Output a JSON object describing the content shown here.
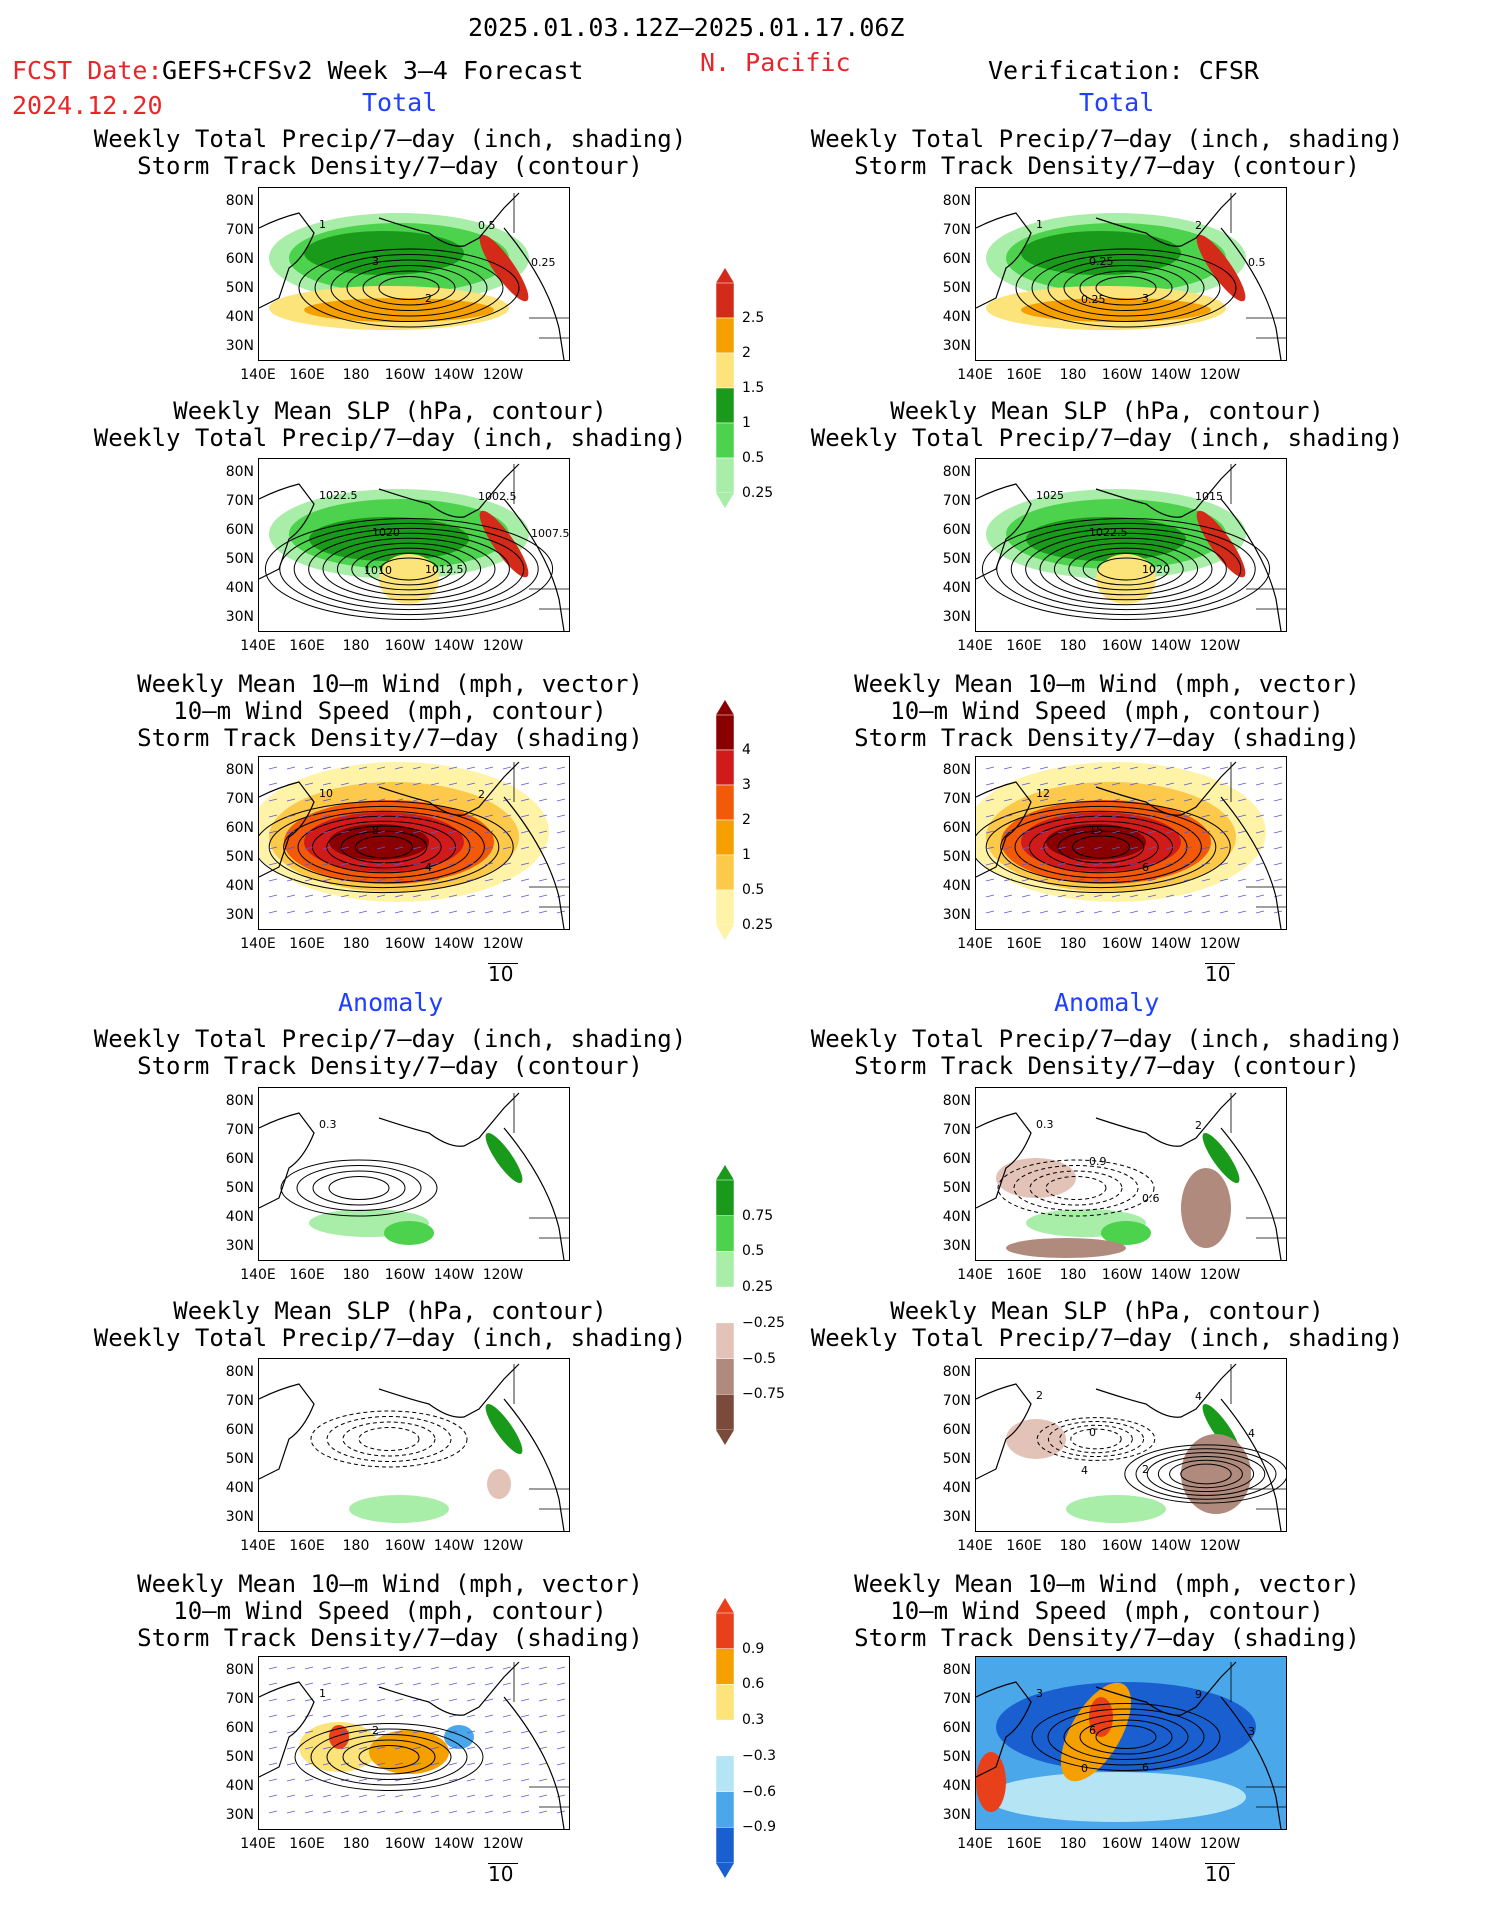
{
  "header": {
    "period": "2025.01.03.12Z–2025.01.17.06Z",
    "fcst_label": "FCST Date:",
    "fcst_model": "GEFS+CFSv2 Week 3–4 Forecast",
    "fcst_date": "2024.12.20",
    "region": "N. Pacific",
    "verification": "Verification: CFSR",
    "total_left": "Total",
    "total_right": "Total",
    "anomaly_left": "Anomaly",
    "anomaly_right": "Anomaly"
  },
  "titles": {
    "precip_storm": [
      "Weekly Total Precip/7–day (inch, shading)",
      "Storm Track Density/7–day (contour)"
    ],
    "slp_precip": [
      "Weekly Mean SLP (hPa, contour)",
      "Weekly Total Precip/7–day (inch, shading)"
    ],
    "wind_storm": [
      "Weekly Mean 10–m Wind (mph, vector)",
      "10–m Wind Speed (mph, contour)",
      "Storm Track Density/7–day (shading)"
    ]
  },
  "axes": {
    "lat_labels": [
      "80N",
      "70N",
      "60N",
      "50N",
      "40N",
      "30N"
    ],
    "lon_labels": [
      "140E",
      "160E",
      "180",
      "160W",
      "140W",
      "120W"
    ]
  },
  "vector_ref": "10",
  "colorbars": {
    "precip_total": {
      "labels": [
        "2.5",
        "2",
        "1.5",
        "1",
        "0.5",
        "0.25"
      ],
      "colors": [
        "#d42a1a",
        "#f5a000",
        "#fce37a",
        "#1a9a1a",
        "#4cd24c",
        "#a8eda8"
      ]
    },
    "storm_total": {
      "labels": [
        "4",
        "3",
        "2",
        "1",
        "0.5",
        "0.25"
      ],
      "colors": [
        "#8a0000",
        "#d11b1b",
        "#f25a0a",
        "#f5a000",
        "#fcc94a",
        "#fff3a8"
      ]
    },
    "precip_anom": {
      "labels": [
        "0.75",
        "0.5",
        "0.25",
        "−0.25",
        "−0.5",
        "−0.75"
      ],
      "colors": [
        "#1a9a1a",
        "#4cd24c",
        "#a8eda8",
        "#ffffff",
        "#e3c2b8",
        "#b08a7c",
        "#7a4a3a"
      ]
    },
    "storm_anom": {
      "labels": [
        "0.9",
        "0.6",
        "0.3",
        "−0.3",
        "−0.6",
        "−0.9"
      ],
      "colors": [
        "#e8401a",
        "#f5a000",
        "#fce37a",
        "#ffffff",
        "#b5e4f5",
        "#4aa7ea",
        "#1a5fd0"
      ]
    }
  },
  "panel_labels": {
    "p1": [
      "1",
      "3",
      "2",
      "0.5",
      "0.25"
    ],
    "p2": [
      "1",
      "0.25",
      "3",
      "2",
      "0.5",
      "0.25"
    ],
    "p3": [
      "1022.5",
      "1020",
      "1012.5",
      "1002.5",
      "1007.5",
      "1010"
    ],
    "p4": [
      "1025",
      "1022.5",
      "1020",
      "1015"
    ],
    "p5": [
      "10",
      "8",
      "4",
      "2"
    ],
    "p6": [
      "12",
      "15",
      "6"
    ],
    "p7": [
      "0.3"
    ],
    "p8": [
      "0.3",
      "0.9",
      "0.6",
      "2"
    ],
    "p9": [],
    "p10": [
      "2",
      "0",
      "2",
      "4",
      "4",
      "4"
    ],
    "p11": [
      "1",
      "2"
    ],
    "p12": [
      "3",
      "6",
      "6",
      "9",
      "3",
      "0"
    ]
  },
  "chart_data": [
    {
      "type": "heatmap",
      "panel": "Total / GEFS+CFSv2",
      "title": [
        "Weekly Total Precip/7–day (inch, shading)",
        "Storm Track Density/7–day (contour)"
      ],
      "lat_range": [
        25,
        85
      ],
      "lon_range": [
        "140E",
        "115W"
      ]
    },
    {
      "type": "heatmap",
      "panel": "Total / CFSR",
      "title": [
        "Weekly Total Precip/7–day (inch, shading)",
        "Storm Track Density/7–day (contour)"
      ],
      "lat_range": [
        25,
        85
      ],
      "lon_range": [
        "140E",
        "115W"
      ]
    },
    {
      "type": "heatmap",
      "panel": "Total / GEFS+CFSv2",
      "title": [
        "Weekly Mean SLP (hPa, contour)",
        "Weekly Total Precip/7–day (inch, shading)"
      ]
    },
    {
      "type": "heatmap",
      "panel": "Total / CFSR",
      "title": [
        "Weekly Mean SLP (hPa, contour)",
        "Weekly Total Precip/7–day (inch, shading)"
      ]
    },
    {
      "type": "heatmap",
      "panel": "Total / GEFS+CFSv2",
      "title": [
        "Weekly Mean 10–m Wind (mph, vector)",
        "10–m Wind Speed (mph, contour)",
        "Storm Track Density/7–day (shading)"
      ]
    },
    {
      "type": "heatmap",
      "panel": "Total / CFSR",
      "title": [
        "Weekly Mean 10–m Wind (mph, vector)",
        "10–m Wind Speed (mph, contour)",
        "Storm Track Density/7–day (shading)"
      ]
    },
    {
      "type": "heatmap",
      "panel": "Anomaly / GEFS+CFSv2",
      "title": [
        "Weekly Total Precip/7–day (inch, shading)",
        "Storm Track Density/7–day (contour)"
      ]
    },
    {
      "type": "heatmap",
      "panel": "Anomaly / CFSR",
      "title": [
        "Weekly Total Precip/7–day (inch, shading)",
        "Storm Track Density/7–day (contour)"
      ]
    },
    {
      "type": "heatmap",
      "panel": "Anomaly / GEFS+CFSv2",
      "title": [
        "Weekly Mean SLP (hPa, contour)",
        "Weekly Total Precip/7–day (inch, shading)"
      ]
    },
    {
      "type": "heatmap",
      "panel": "Anomaly / CFSR",
      "title": [
        "Weekly Mean SLP (hPa, contour)",
        "Weekly Total Precip/7–day (inch, shading)"
      ]
    },
    {
      "type": "heatmap",
      "panel": "Anomaly / GEFS+CFSv2",
      "title": [
        "Weekly Mean 10–m Wind (mph, vector)",
        "10–m Wind Speed (mph, contour)",
        "Storm Track Density/7–day (shading)"
      ]
    },
    {
      "type": "heatmap",
      "panel": "Anomaly / CFSR",
      "title": [
        "Weekly Mean 10–m Wind (mph, vector)",
        "10–m Wind Speed (mph, contour)",
        "Storm Track Density/7–day (shading)"
      ]
    }
  ]
}
